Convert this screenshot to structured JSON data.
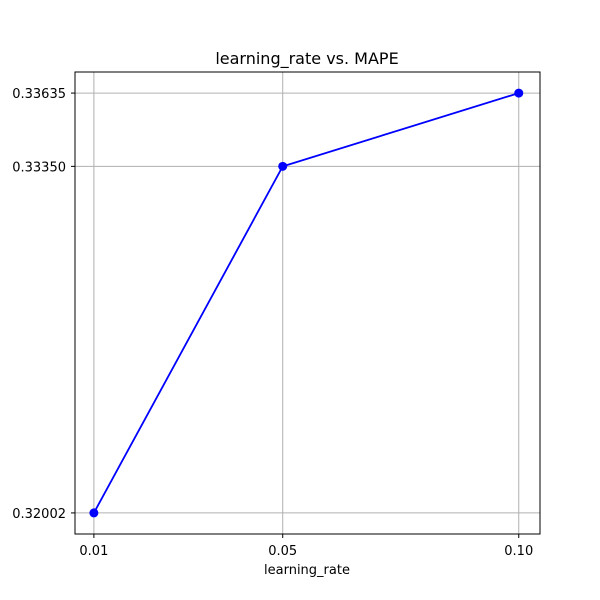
{
  "chart_data": {
    "type": "line",
    "title": "learning_rate vs. MAPE",
    "xlabel": "learning_rate",
    "ylabel": "",
    "x": [
      0.01,
      0.05,
      0.1
    ],
    "x_tick_labels": [
      "0.01",
      "0.05",
      "0.10"
    ],
    "y_tick_values": [
      0.32002,
      0.3335,
      0.33635
    ],
    "y_tick_labels": [
      "0.32002",
      "0.33350",
      "0.33635"
    ],
    "xlim": [
      0.006,
      0.1045
    ],
    "ylim": [
      0.3192,
      0.33717
    ],
    "grid": true,
    "series": [
      {
        "values": [
          0.32002,
          0.3335,
          0.33635
        ],
        "color": "#0000ff",
        "marker": "circle"
      }
    ]
  }
}
